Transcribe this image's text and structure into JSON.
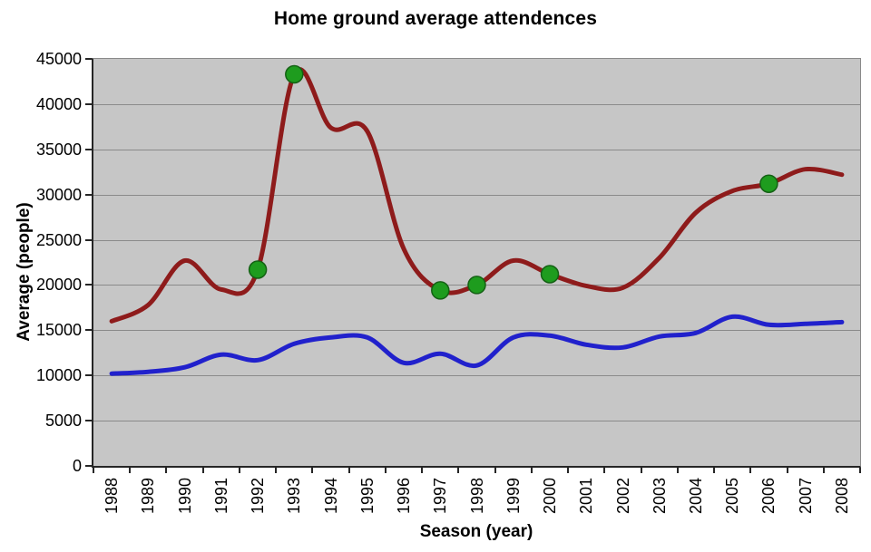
{
  "chart_data": {
    "type": "line",
    "title": "Home ground average attendences",
    "xlabel": "Season (year)",
    "ylabel": "Average (people)",
    "categories": [
      "1988",
      "1989",
      "1990",
      "1991",
      "1992",
      "1993",
      "1994",
      "1995",
      "1996",
      "1997",
      "1998",
      "1999",
      "2000",
      "2001",
      "2002",
      "2003",
      "2004",
      "2005",
      "2006",
      "2007",
      "2008"
    ],
    "series": [
      {
        "name": "dark-red-line",
        "color": "#8E1B1B",
        "line_width": 5,
        "values": [
          16000,
          17800,
          22700,
          19500,
          21700,
          43300,
          37400,
          37000,
          24000,
          19400,
          20000,
          22700,
          21200,
          19900,
          19700,
          23000,
          28000,
          30400,
          31200,
          32800,
          32200
        ],
        "markers": {
          "years": [
            "1992",
            "1993",
            "1997",
            "1998",
            "2000",
            "2006"
          ],
          "color": "#1E9C1E",
          "edge_color": "#146114",
          "radius": 9.5
        }
      },
      {
        "name": "blue-line",
        "color": "#2121CC",
        "line_width": 5,
        "values": [
          10200,
          10400,
          10900,
          12300,
          11700,
          13500,
          14200,
          14200,
          11400,
          12400,
          11100,
          14200,
          14400,
          13400,
          13100,
          14300,
          14700,
          16500,
          15600,
          15700,
          15900
        ]
      }
    ],
    "ylim": [
      0,
      45000
    ],
    "ytick_step": 5000,
    "y_tick_labels": [
      "45000",
      "40000",
      "35000",
      "30000",
      "25000",
      "20000",
      "15000",
      "10000",
      "5000",
      "0"
    ],
    "grid": "horizontal",
    "legend": "none",
    "plot_bg": "#C6C6C6",
    "grid_color": "#8A8A8A",
    "axis_color": "#262626"
  }
}
